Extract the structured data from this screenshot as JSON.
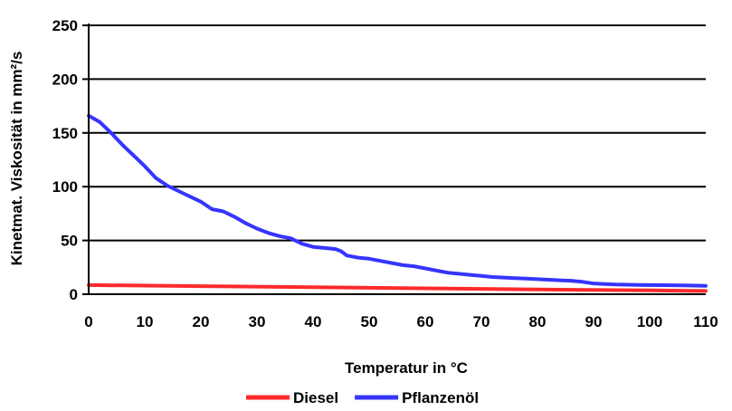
{
  "chart_data": {
    "type": "line",
    "title": "",
    "xlabel": "Temperatur in °C",
    "ylabel": "Kinetmat. Viskosität in mm²/s",
    "xlim": [
      0,
      110
    ],
    "ylim": [
      0,
      250
    ],
    "x_ticks": [
      0,
      10,
      20,
      30,
      40,
      50,
      60,
      70,
      80,
      90,
      100,
      110
    ],
    "y_ticks": [
      0,
      50,
      100,
      150,
      200,
      250
    ],
    "grid": "horizontal",
    "legend_position": "bottom",
    "series": [
      {
        "name": "Diesel",
        "color": "#ff2a2a",
        "x": [
          0,
          20,
          40,
          60,
          80,
          100,
          110
        ],
        "y": [
          8.5,
          7.5,
          6.5,
          5.5,
          4.5,
          3.5,
          3
        ]
      },
      {
        "name": "Pflanzenöl",
        "color": "#3535ff",
        "x": [
          0,
          2,
          4,
          6,
          8,
          10,
          12,
          14,
          16,
          18,
          20,
          22,
          24,
          26,
          28,
          30,
          32,
          34,
          36,
          38,
          40,
          42,
          44,
          45,
          46,
          48,
          50,
          52,
          54,
          56,
          58,
          60,
          62,
          64,
          66,
          68,
          70,
          72,
          74,
          76,
          78,
          80,
          82,
          84,
          86,
          88,
          90,
          92,
          94,
          96,
          98,
          100,
          102,
          104,
          106,
          108,
          110
        ],
        "y": [
          166,
          160,
          150,
          139,
          129,
          119,
          108,
          101,
          96,
          91,
          86,
          79,
          77,
          72,
          66,
          61,
          57,
          54,
          52,
          47,
          44,
          43,
          42,
          40,
          36,
          34,
          33,
          31,
          29,
          27,
          26,
          24,
          22,
          20,
          19,
          18,
          17,
          16,
          15.5,
          15,
          14.5,
          14,
          13.5,
          13,
          12.5,
          11.5,
          10,
          9.5,
          9,
          8.8,
          8.6,
          8.5,
          8.4,
          8.3,
          8.2,
          8,
          7.8
        ]
      }
    ]
  }
}
